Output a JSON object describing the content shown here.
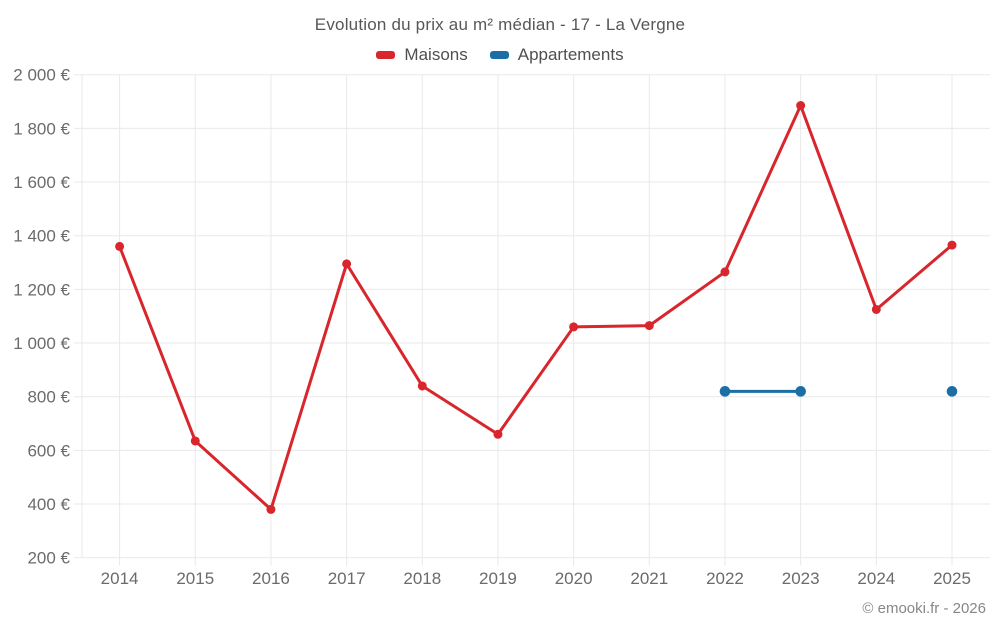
{
  "chart": {
    "title": "Evolution du prix au m² médian - 17 - La Vergne",
    "footer": "© emooki.fr - 2026",
    "background": "#ffffff",
    "grid_color": "#e9e9e9",
    "axis_label_color": "#6b6b6b",
    "title_color": "#575757"
  },
  "chart_data": {
    "type": "line",
    "title": "Evolution du prix au m² médian - 17 - La Vergne",
    "categories": [
      "2014",
      "2015",
      "2016",
      "2017",
      "2018",
      "2019",
      "2020",
      "2021",
      "2022",
      "2023",
      "2024",
      "2025"
    ],
    "series": [
      {
        "name": "Maisons",
        "color": "#d8262c",
        "values": [
          1360,
          635,
          380,
          1295,
          840,
          660,
          1060,
          1065,
          1265,
          1885,
          1125,
          1365
        ]
      },
      {
        "name": "Appartements",
        "color": "#1c6fa5",
        "values": [
          null,
          null,
          null,
          null,
          null,
          null,
          null,
          null,
          820,
          820,
          null,
          820
        ]
      }
    ],
    "xlabel": "",
    "ylabel": "",
    "y_unit": "€",
    "ylim": [
      200,
      2000
    ],
    "ytick_step": 200,
    "ytick_labels": [
      "200 €",
      "400 €",
      "600 €",
      "800 €",
      "1 000 €",
      "1 200 €",
      "1 400 €",
      "1 600 €",
      "1 800 €",
      "2 000 €"
    ],
    "grid": true,
    "legend_position": "top",
    "legend_entries": [
      "Maisons",
      "Appartements"
    ]
  }
}
